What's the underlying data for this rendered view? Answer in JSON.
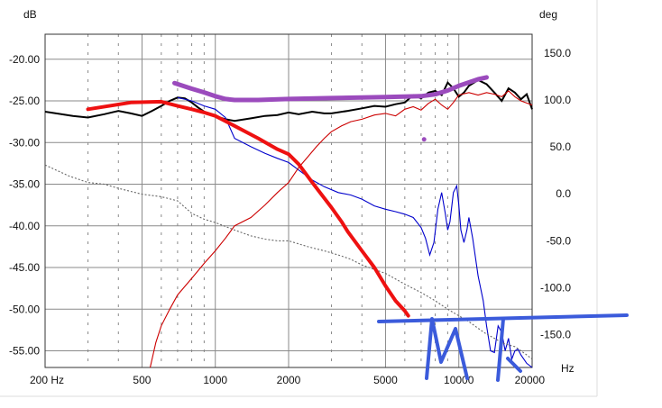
{
  "chart_data": {
    "type": "line",
    "title": "",
    "x_axis": {
      "label": "Hz",
      "scale": "log",
      "range": [
        200,
        20000
      ],
      "tick_labels": [
        "200 Hz",
        "500",
        "1000",
        "2000",
        "5000",
        "10000",
        "20000"
      ],
      "tick_values": [
        200,
        500,
        1000,
        2000,
        5000,
        10000,
        20000
      ]
    },
    "y_left": {
      "label": "dB",
      "range": [
        -57,
        -17
      ],
      "tick_labels": [
        "-20.00",
        "-25.00",
        "-30.00",
        "-35.00",
        "-40.00",
        "-45.00",
        "-50.00",
        "-55.00"
      ],
      "tick_values": [
        -20,
        -25,
        -30,
        -35,
        -40,
        -45,
        -50,
        -55
      ]
    },
    "y_right": {
      "label": "deg",
      "range": [
        -185,
        170
      ],
      "tick_labels": [
        "150.0",
        "100.0",
        "50.0",
        "0.0",
        "-50.0",
        "-100.0",
        "-150.0"
      ],
      "tick_values": [
        150,
        100,
        50,
        0,
        -50,
        -100,
        -150
      ]
    },
    "grid": true,
    "legend": "none",
    "series": [
      {
        "color": "#000000",
        "style": "solid",
        "axis": "left",
        "x": [
          200,
          260,
          300,
          350,
          400,
          450,
          500,
          550,
          600,
          650,
          700,
          750,
          800,
          850,
          900,
          950,
          1000,
          1100,
          1200,
          1400,
          1600,
          1800,
          2000,
          2200,
          2500,
          2800,
          3000,
          3500,
          4000,
          4500,
          5000,
          5500,
          6000,
          6500,
          7000,
          7500,
          8000,
          8500,
          9000,
          9500,
          10000,
          10500,
          11000,
          12000,
          13000,
          14000,
          15000,
          16000,
          17000,
          18000,
          19000,
          20000
        ],
        "y": [
          -26.3,
          -26.8,
          -27.0,
          -26.6,
          -26.2,
          -26.5,
          -26.8,
          -26.2,
          -25.6,
          -25.0,
          -24.6,
          -24.7,
          -25.2,
          -25.8,
          -26.3,
          -26.6,
          -26.8,
          -27.2,
          -27.4,
          -27.1,
          -26.8,
          -26.7,
          -26.4,
          -26.6,
          -26.3,
          -26.5,
          -26.5,
          -26.2,
          -25.9,
          -25.6,
          -25.7,
          -25.4,
          -25.2,
          -24.3,
          -24.7,
          -24.0,
          -23.8,
          -24.3,
          -22.8,
          -23.5,
          -24.5,
          -24.0,
          -23.2,
          -22.5,
          -23.0,
          -24.0,
          -25.0,
          -23.5,
          -24.0,
          -24.8,
          -24.2,
          -26.0
        ]
      },
      {
        "color": "#0000cc",
        "style": "solid",
        "axis": "left",
        "x": [
          700,
          800,
          900,
          1000,
          1100,
          1200,
          1400,
          1600,
          1800,
          2000,
          2200,
          2500,
          2800,
          3200,
          3600,
          4000,
          4500,
          5000,
          5500,
          6000,
          6500,
          7000,
          7300,
          7600,
          7900,
          8200,
          8500,
          8800,
          9000,
          9200,
          9500,
          9800,
          10000,
          10200,
          10500,
          10800,
          11000,
          11400,
          12000,
          12600,
          13000,
          13500,
          14000,
          14500,
          15000,
          15500,
          16000,
          16500,
          17000,
          17500,
          18000,
          19000,
          20000
        ],
        "y": [
          -24.6,
          -25.0,
          -25.6,
          -26.0,
          -27.0,
          -29.5,
          -30.5,
          -31.3,
          -31.9,
          -32.4,
          -33.3,
          -34.5,
          -35.3,
          -36.0,
          -36.3,
          -36.8,
          -37.6,
          -38.0,
          -38.3,
          -38.6,
          -39.0,
          -40.2,
          -41.5,
          -43.5,
          -42.0,
          -38.0,
          -36.0,
          -38.5,
          -40.5,
          -39.5,
          -36.0,
          -35.2,
          -37.5,
          -40.5,
          -42.0,
          -40.5,
          -39.0,
          -41.5,
          -46.0,
          -49.0,
          -52.0,
          -55.0,
          -55.2,
          -52.0,
          -52.8,
          -55.0,
          -53.5,
          -56.0,
          -55.0,
          -54.8,
          -55.5,
          -56.5,
          -57.0
        ]
      },
      {
        "color": "#cc0000",
        "style": "solid",
        "axis": "left",
        "x": [
          540,
          570,
          600,
          650,
          700,
          800,
          900,
          1000,
          1100,
          1200,
          1400,
          1600,
          1800,
          2000,
          2200,
          2400,
          2600,
          2800,
          3000,
          3300,
          3600,
          4000,
          4500,
          5000,
          5500,
          6000,
          6500,
          7000,
          7500,
          8000,
          8500,
          9000,
          9500,
          10000,
          11000,
          12000,
          13000,
          14000,
          15000,
          16000,
          17000,
          18000,
          20000
        ],
        "y": [
          -57.0,
          -54.0,
          -52.0,
          -50.0,
          -48.3,
          -46.3,
          -44.5,
          -43.0,
          -41.5,
          -40.0,
          -39.0,
          -37.5,
          -36.0,
          -34.8,
          -33.0,
          -31.7,
          -30.5,
          -29.5,
          -28.7,
          -28.0,
          -27.5,
          -27.2,
          -26.7,
          -26.5,
          -26.8,
          -26.0,
          -25.7,
          -26.1,
          -25.3,
          -24.8,
          -25.5,
          -26.0,
          -25.2,
          -24.3,
          -24.0,
          -24.3,
          -24.0,
          -24.2,
          -24.5,
          -23.8,
          -24.5,
          -25.0,
          -25.5
        ]
      },
      {
        "color": "#666666",
        "style": "dotted",
        "axis": "left",
        "x": [
          200,
          250,
          300,
          350,
          400,
          500,
          600,
          700,
          800,
          900,
          1000,
          1200,
          1400,
          1600,
          1800,
          2000,
          2400,
          2800,
          3200,
          3600,
          4000,
          5000,
          6000,
          7000,
          8000,
          9000,
          10000,
          11000,
          12000,
          13000,
          14000,
          15000,
          16000,
          17000,
          18000,
          19000,
          20000
        ],
        "y": [
          -32.7,
          -34.0,
          -34.8,
          -35.0,
          -35.5,
          -36.2,
          -36.5,
          -37.0,
          -38.5,
          -39.2,
          -39.6,
          -40.5,
          -41.2,
          -41.6,
          -41.8,
          -41.8,
          -42.5,
          -43.0,
          -43.5,
          -44.0,
          -44.7,
          -45.7,
          -47.0,
          -48.0,
          -49.0,
          -50.0,
          -50.8,
          -51.5,
          -52.3,
          -53.0,
          -53.5,
          -54.0,
          -54.3,
          -54.5,
          -55.0,
          -55.5,
          -56.0
        ]
      }
    ]
  },
  "overlays": {
    "red_trend_db": {
      "color": "#ee1111",
      "x": [
        300,
        450,
        600,
        700,
        800,
        900,
        1000,
        1200,
        1500,
        1800,
        2000,
        2200,
        2500,
        3000,
        3300,
        3500,
        4000,
        4500,
        5000,
        5500,
        6000,
        6200
      ],
      "y": [
        -26.0,
        -25.2,
        -25.1,
        -25.6,
        -26.0,
        -26.4,
        -26.8,
        -28.0,
        -29.5,
        -30.8,
        -31.4,
        -32.6,
        -34.8,
        -37.8,
        -39.5,
        -40.7,
        -43.0,
        -45.0,
        -47.2,
        -49.0,
        -50.2,
        -50.8
      ]
    },
    "purple_trend_deg": {
      "color": "#9b4bbd",
      "x": [
        680,
        800,
        900,
        1000,
        1100,
        1200,
        1500,
        2000,
        3000,
        5000,
        7000,
        8000,
        9000,
        10000,
        12000,
        13000
      ],
      "y": [
        118,
        112,
        108,
        104,
        101,
        100,
        100,
        101,
        102,
        103,
        104,
        106,
        110,
        115,
        122,
        124
      ],
      "dot": [
        7200,
        58
      ]
    },
    "blue_markup": {
      "color": "#3b5bdb"
    }
  }
}
